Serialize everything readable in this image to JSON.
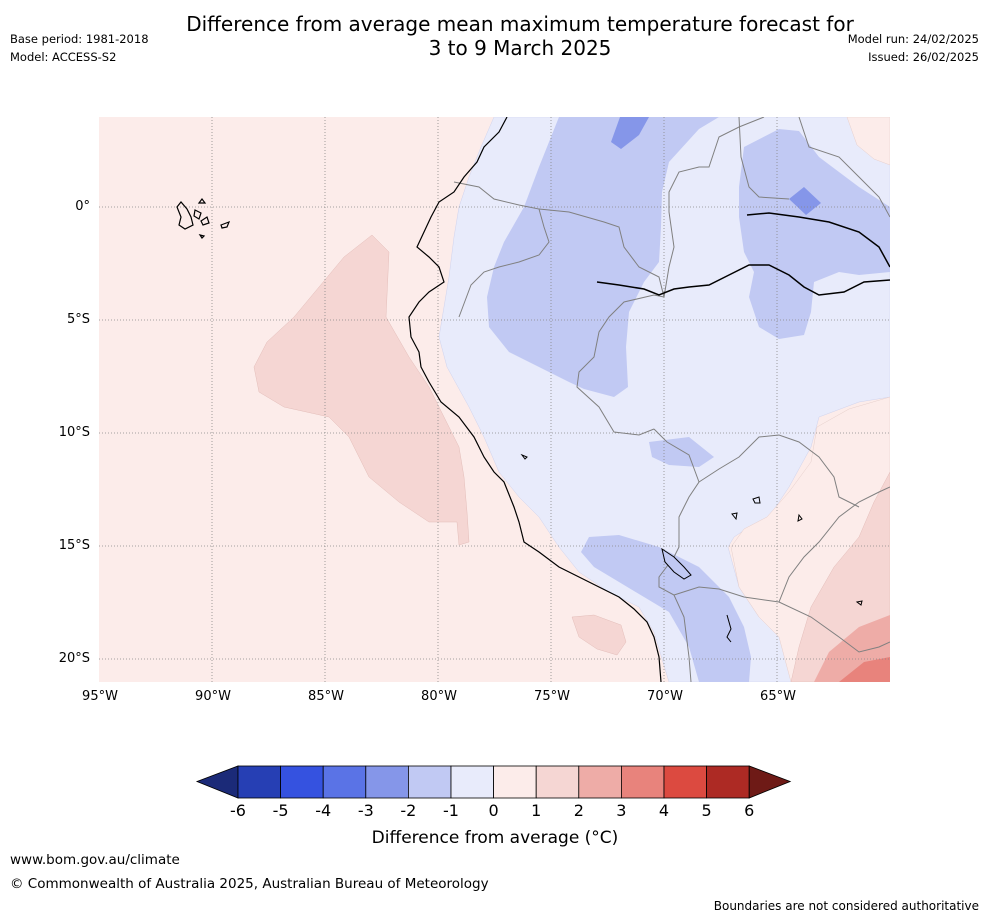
{
  "header": {
    "base_period": "Base period: 1981-2018",
    "model": "Model: ACCESS-S2",
    "title_line1": "Difference from average mean maximum temperature forecast for",
    "title_line2": "3 to 9 March 2025",
    "model_run": "Model run: 24/02/2025",
    "issued": "Issued: 26/02/2025"
  },
  "map": {
    "lat_labels": [
      "0°",
      "5°S",
      "10°S",
      "15°S",
      "20°S"
    ],
    "lon_labels": [
      "95°W",
      "90°W",
      "85°W",
      "80°W",
      "75°W",
      "70°W",
      "65°W"
    ],
    "colors": {
      "ocean_near_avg": "#fcecea",
      "warm_1_2": "#f5d6d3",
      "warm_2_3": "#eeaca7",
      "warm_3_4": "#e8837c",
      "cool_0_1": "#e8ebfb",
      "cool_1_2": "#c1c9f3",
      "cool_2_3": "#8596e9",
      "coastline": "#000000",
      "boundary": "#808080",
      "grid": "#888888"
    }
  },
  "legend": {
    "ticks": [
      "-6",
      "-5",
      "-4",
      "-3",
      "-2",
      "-1",
      "0",
      "1",
      "2",
      "3",
      "4",
      "5",
      "6"
    ],
    "colors": [
      "#1b2a78",
      "#263fb4",
      "#3552e0",
      "#5a73e6",
      "#8596e9",
      "#c1c9f3",
      "#e8ebfb",
      "#fcecea",
      "#f5d6d3",
      "#eeaca7",
      "#e8837c",
      "#dc4a40",
      "#ad2a24",
      "#6e1a16"
    ],
    "label": "Difference from average (°C)"
  },
  "footer": {
    "website": "www.bom.gov.au/climate",
    "copyright": "© Commonwealth of Australia 2025, Australian Bureau of Meteorology",
    "disclaimer": "Boundaries are not considered authoritative"
  }
}
